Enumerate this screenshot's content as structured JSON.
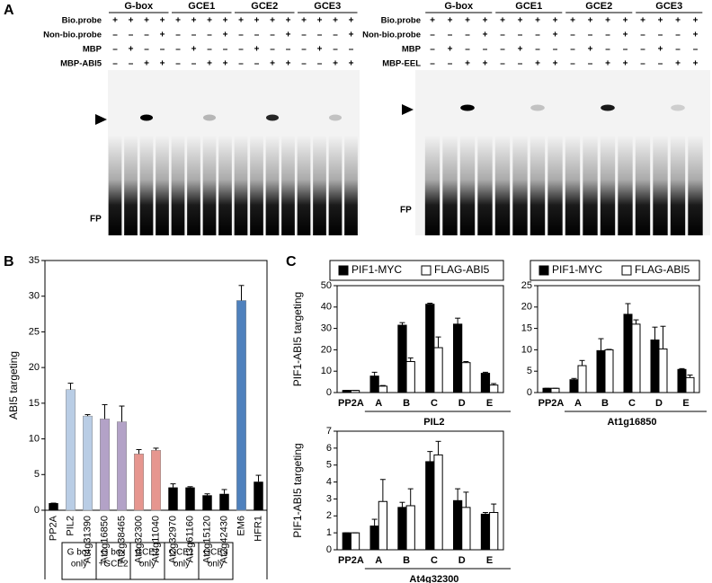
{
  "panel_labels": [
    "A",
    "B",
    "C"
  ],
  "gels": [
    {
      "groups": [
        "G-box",
        "GCE1",
        "GCE2",
        "GCE3"
      ],
      "rows": [
        {
          "label": "Bio.probe",
          "signs": [
            "+",
            "+",
            "+",
            "+",
            "+",
            "+",
            "+",
            "+",
            "+",
            "+",
            "+",
            "+",
            "+",
            "+",
            "+",
            "+"
          ]
        },
        {
          "label": "Non-bio.probe",
          "signs": [
            "–",
            "–",
            "–",
            "+",
            "–",
            "–",
            "–",
            "+",
            "–",
            "–",
            "–",
            "+",
            "–",
            "–",
            "–",
            "+"
          ]
        },
        {
          "label": "MBP",
          "signs": [
            "–",
            "+",
            "–",
            "–",
            "–",
            "+",
            "–",
            "–",
            "–",
            "+",
            "–",
            "–",
            "–",
            "+",
            "–",
            "–"
          ]
        },
        {
          "label": "MBP-ABI5",
          "signs": [
            "–",
            "–",
            "+",
            "+",
            "–",
            "–",
            "+",
            "+",
            "–",
            "–",
            "+",
            "+",
            "–",
            "–",
            "+",
            "+"
          ]
        }
      ],
      "fp_label": "FP"
    },
    {
      "groups": [
        "G-box",
        "GCE1",
        "GCE2",
        "GCE3"
      ],
      "rows": [
        {
          "label": "Bio.probe",
          "signs": [
            "+",
            "+",
            "+",
            "+",
            "+",
            "+",
            "+",
            "+",
            "+",
            "+",
            "+",
            "+",
            "+",
            "+",
            "+",
            "+"
          ]
        },
        {
          "label": "Non-bio.probe",
          "signs": [
            "–",
            "–",
            "–",
            "+",
            "–",
            "–",
            "–",
            "+",
            "–",
            "–",
            "–",
            "+",
            "–",
            "–",
            "–",
            "+"
          ]
        },
        {
          "label": "MBP",
          "signs": [
            "–",
            "+",
            "–",
            "–",
            "–",
            "+",
            "–",
            "–",
            "–",
            "+",
            "–",
            "–",
            "–",
            "+",
            "–",
            "–"
          ]
        },
        {
          "label": "MBP-EEL",
          "signs": [
            "–",
            "–",
            "+",
            "+",
            "–",
            "–",
            "+",
            "+",
            "–",
            "–",
            "+",
            "+",
            "–",
            "–",
            "+",
            "+"
          ]
        }
      ],
      "fp_label": "FP"
    }
  ],
  "chart_data": [
    {
      "type": "bar",
      "ylabel": "ABI5 targeting",
      "categories": [
        "PP2A",
        "PIL2",
        "At4g31390",
        "At1g16850",
        "At2g38465",
        "At4g32300",
        "At4g11040",
        "At2g32970",
        "At3g61160",
        "At1g15120",
        "At2g42430",
        "EM6",
        "HFR1"
      ],
      "values": [
        1,
        16.9,
        13.2,
        12.8,
        12.4,
        7.9,
        8.4,
        3.2,
        3.2,
        2.1,
        2.3,
        29.4,
        4.0
      ],
      "errors": [
        0,
        0.9,
        0.2,
        2.0,
        2.2,
        0.6,
        0.3,
        0.5,
        0.1,
        0.2,
        0.6,
        2.1,
        0.9
      ],
      "colors": [
        "#000000",
        "#b9cde5",
        "#b9cde5",
        "#b3a2c7",
        "#b3a2c7",
        "#e6968f",
        "#e6968f",
        "#000000",
        "#000000",
        "#000000",
        "#000000",
        "#4f81bd",
        "#000000"
      ],
      "ylim": [
        0,
        35
      ],
      "yticks": [
        0,
        5,
        10,
        15,
        20,
        25,
        30,
        35
      ],
      "groups": [
        {
          "lines": [
            "G box",
            "only"
          ]
        },
        {
          "lines": [
            "G box",
            "+GCE2"
          ]
        },
        {
          "lines": [
            "GCE2",
            "only"
          ]
        },
        {
          "lines": [
            "GCE1",
            "only"
          ]
        },
        {
          "lines": [
            "GCE3",
            "only"
          ]
        }
      ]
    },
    {
      "type": "bar",
      "ylabel": "PIF1-ABI5 targeting",
      "xlabel": "PIL2",
      "categories": [
        "PP2A",
        "A",
        "B",
        "C",
        "D",
        "E"
      ],
      "series": [
        {
          "name": "PIF1-MYC",
          "color": "#000000",
          "values": [
            1,
            7.7,
            31.5,
            41.3,
            32,
            9
          ],
          "errors": [
            0,
            1.8,
            1.2,
            0.5,
            2.8,
            0.5
          ]
        },
        {
          "name": "FLAG-ABI5",
          "color": "#ffffff",
          "values": [
            1,
            3,
            14.5,
            21,
            14,
            3.5
          ],
          "errors": [
            0,
            0.3,
            1.7,
            5,
            0.5,
            0.7
          ]
        }
      ],
      "ylim": [
        0,
        50
      ],
      "yticks": [
        0,
        10,
        20,
        30,
        40,
        50
      ],
      "legend": true
    },
    {
      "type": "bar",
      "xlabel": "At1g16850",
      "categories": [
        "PP2A",
        "A",
        "B",
        "C",
        "D",
        "E"
      ],
      "series": [
        {
          "name": "PIF1-MYC",
          "color": "#000000",
          "values": [
            1,
            3,
            9.8,
            18.3,
            12.3,
            5.4
          ],
          "errors": [
            0,
            0.3,
            2.8,
            2.5,
            3,
            0.2
          ]
        },
        {
          "name": "FLAG-ABI5",
          "color": "#ffffff",
          "values": [
            1,
            6.3,
            10,
            16,
            10.2,
            3.5
          ],
          "errors": [
            0,
            1.2,
            0.1,
            1,
            5.3,
            0.6
          ]
        }
      ],
      "ylim": [
        0,
        25
      ],
      "yticks": [
        0,
        5,
        10,
        15,
        20,
        25
      ],
      "legend": true
    },
    {
      "type": "bar",
      "ylabel": "PIF1-ABI5 targeting",
      "xlabel": "At4g32300",
      "categories": [
        "PP2A",
        "A",
        "B",
        "C",
        "D",
        "E"
      ],
      "series": [
        {
          "name": "PIF1-MYC",
          "color": "#000000",
          "values": [
            1,
            1.4,
            2.5,
            5.2,
            2.9,
            2.1
          ],
          "errors": [
            0,
            0.4,
            0.3,
            0.6,
            0.7,
            0.1
          ]
        },
        {
          "name": "FLAG-ABI5",
          "color": "#ffffff",
          "values": [
            1,
            2.85,
            2.6,
            5.6,
            2.5,
            2.2
          ],
          "errors": [
            0,
            1.3,
            1.0,
            0.8,
            0.9,
            0.5
          ]
        }
      ],
      "ylim": [
        0,
        7
      ],
      "yticks": [
        0,
        1,
        2,
        3,
        4,
        5,
        6,
        7
      ],
      "legend": false
    }
  ]
}
